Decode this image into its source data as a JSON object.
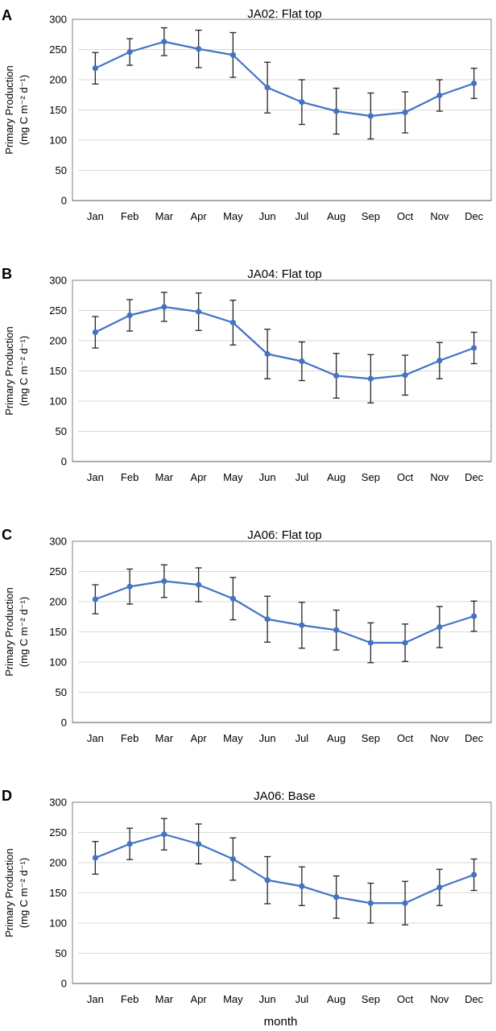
{
  "figure": {
    "shared_xlabel": "month"
  },
  "chart_data": [
    {
      "panel": "A",
      "type": "line",
      "title": "JA02: Flat top",
      "ylabel_line1": "Primary Production",
      "ylabel_line2": "(mg C m⁻² d⁻¹)",
      "xlabel": "",
      "categories": [
        "Jan",
        "Feb",
        "Mar",
        "Apr",
        "May",
        "Jun",
        "Jul",
        "Aug",
        "Sep",
        "Oct",
        "Nov",
        "Dec"
      ],
      "values": [
        219,
        246,
        263,
        251,
        241,
        187,
        163,
        148,
        140,
        146,
        174,
        194
      ],
      "error": [
        26,
        22,
        23,
        31,
        37,
        42,
        37,
        38,
        38,
        34,
        26,
        25
      ],
      "ylim": [
        0,
        300
      ],
      "yticks": [
        0,
        50,
        100,
        150,
        200,
        250,
        300
      ],
      "line_color": "#4472C4",
      "grid": true
    },
    {
      "panel": "B",
      "type": "line",
      "title": "JA04: Flat top",
      "ylabel_line1": "Primary Production",
      "ylabel_line2": "(mg C m⁻² d⁻¹)",
      "xlabel": "",
      "categories": [
        "Jan",
        "Feb",
        "Mar",
        "Apr",
        "May",
        "Jun",
        "Jul",
        "Aug",
        "Sep",
        "Oct",
        "Nov",
        "Dec"
      ],
      "values": [
        214,
        242,
        256,
        248,
        230,
        178,
        166,
        142,
        137,
        143,
        167,
        188
      ],
      "error": [
        26,
        26,
        24,
        31,
        37,
        41,
        32,
        37,
        40,
        33,
        30,
        26
      ],
      "ylim": [
        0,
        300
      ],
      "yticks": [
        0,
        50,
        100,
        150,
        200,
        250,
        300
      ],
      "line_color": "#4472C4",
      "grid": true
    },
    {
      "panel": "C",
      "type": "line",
      "title": "JA06: Flat top",
      "ylabel_line1": "Primary Production",
      "ylabel_line2": "(mg C m⁻² d⁻¹)",
      "xlabel": "",
      "categories": [
        "Jan",
        "Feb",
        "Mar",
        "Apr",
        "May",
        "Jun",
        "Jul",
        "Aug",
        "Sep",
        "Oct",
        "Nov",
        "Dec"
      ],
      "values": [
        204,
        225,
        234,
        228,
        205,
        171,
        161,
        153,
        132,
        132,
        158,
        176
      ],
      "error": [
        24,
        29,
        27,
        28,
        35,
        38,
        38,
        33,
        33,
        31,
        34,
        25
      ],
      "ylim": [
        0,
        300
      ],
      "yticks": [
        0,
        50,
        100,
        150,
        200,
        250,
        300
      ],
      "line_color": "#4472C4",
      "grid": true
    },
    {
      "panel": "D",
      "type": "line",
      "title": "JA06: Base",
      "ylabel_line1": "Primary Production",
      "ylabel_line2": "(mg C m⁻² d⁻¹)",
      "xlabel": "month",
      "categories": [
        "Jan",
        "Feb",
        "Mar",
        "Apr",
        "May",
        "Jun",
        "Jul",
        "Aug",
        "Sep",
        "Oct",
        "Nov",
        "Dec"
      ],
      "values": [
        208,
        231,
        247,
        231,
        206,
        171,
        161,
        143,
        133,
        133,
        159,
        180
      ],
      "error": [
        27,
        26,
        26,
        33,
        35,
        39,
        32,
        35,
        33,
        36,
        30,
        26
      ],
      "ylim": [
        0,
        300
      ],
      "yticks": [
        0,
        50,
        100,
        150,
        200,
        250,
        300
      ],
      "line_color": "#4472C4",
      "grid": true
    }
  ]
}
